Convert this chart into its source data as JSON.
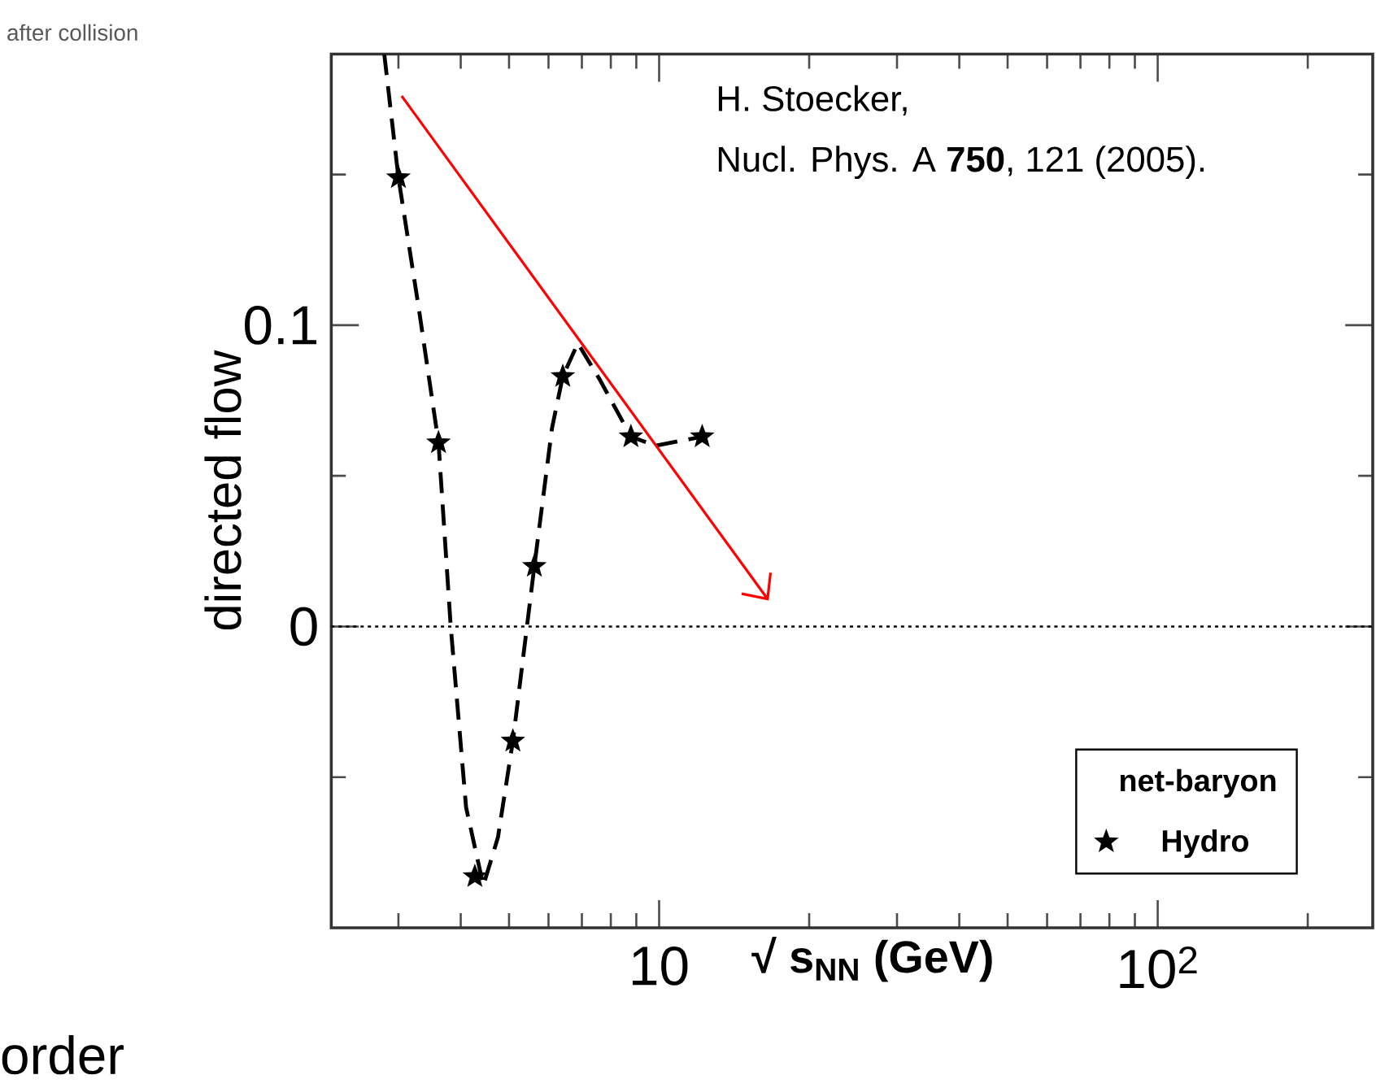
{
  "chart_data": {
    "type": "scatter",
    "xlabel": "√ s$_{NN}$ (GeV)",
    "ylabel": "directed flow",
    "legend_title": "net-baryon",
    "log": "x",
    "legend": "bottom right",
    "xlim": [
      2.2,
      270
    ],
    "ylim": [
      -0.1,
      0.19
    ],
    "xticks": [
      {
        "value": 3,
        "label": null
      },
      {
        "value": 4,
        "label": null
      },
      {
        "value": 5,
        "label": null
      },
      {
        "value": 6,
        "label": null
      },
      {
        "value": 7,
        "label": null
      },
      {
        "value": 8,
        "label": null
      },
      {
        "value": 9,
        "label": null
      },
      10,
      {
        "value": 20,
        "label": null
      },
      {
        "value": 30,
        "label": null
      },
      {
        "value": 40,
        "label": null
      },
      {
        "value": 50,
        "label": null
      },
      {
        "value": 60,
        "label": null
      },
      {
        "value": 70,
        "label": null
      },
      {
        "value": 80,
        "label": null
      },
      {
        "value": 90,
        "label": null
      },
      {
        "value": 100,
        "label": "10$^{2}$"
      },
      {
        "value": 200,
        "label": null
      }
    ],
    "yticks": [
      {
        "value": -0.05,
        "label": null
      },
      0,
      {
        "value": 0.05,
        "label": null
      },
      0.1,
      {
        "value": 0.15,
        "label": null
      }
    ],
    "ref_lines": [
      {
        "axis": "y",
        "value": 0,
        "line_style": "dotted",
        "color": "#000000"
      }
    ],
    "annotations": [
      "H. Stoecker,",
      "Nucl. Phys. A **750**, 121 (2005).",
      "after collision",
      "order"
    ],
    "series": [
      {
        "name": "Hydro",
        "marker": "star",
        "color": "#000000",
        "x": [
          3.0,
          3.61,
          4.27,
          5.09,
          5.62,
          6.41,
          8.78,
          12.2
        ],
        "values": [
          0.149,
          0.061,
          -0.083,
          -0.038,
          0.02,
          0.083,
          0.063,
          0.063
        ]
      },
      {
        "type": "line",
        "line_style": "dashed",
        "marker": "none",
        "color": "#000000",
        "x": [
          2.81,
          3.0,
          3.3,
          3.61,
          3.82,
          4.1,
          4.44,
          4.75,
          5.09,
          5.62,
          6.1,
          6.41,
          6.87,
          7.6,
          8.78,
          9.85,
          12.2
        ],
        "values": [
          0.19,
          0.149,
          0.105,
          0.061,
          0,
          -0.06,
          -0.086,
          -0.07,
          -0.038,
          0.02,
          0.066,
          0.083,
          0.094,
          0.082,
          0.063,
          0.06,
          0.063
        ]
      }
    ]
  }
}
